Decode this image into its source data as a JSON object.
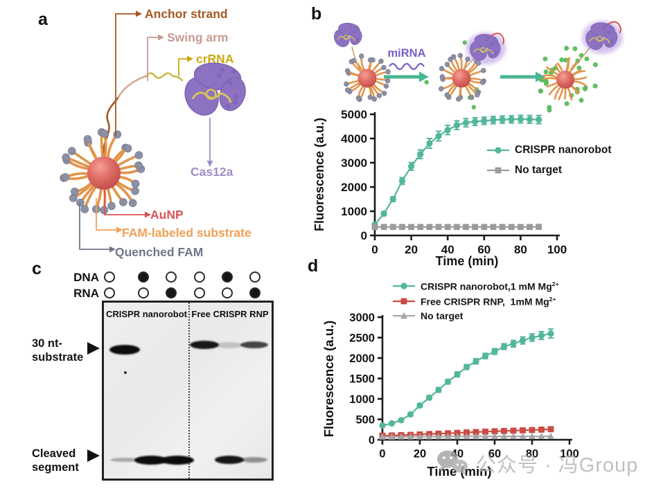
{
  "panel_labels": {
    "a": "a",
    "b": "b",
    "c": "c",
    "d": "d"
  },
  "panel_a": {
    "anchor_strand": {
      "label": "Anchor strand",
      "color": "#a4571f"
    },
    "swing_arm": {
      "label": "Swing arm",
      "color": "#c79a92"
    },
    "crrna": {
      "label": "crRNA",
      "color": "#c9a90e"
    },
    "cas12a": {
      "label": "Cas12a",
      "color": "#a08cc8"
    },
    "aunp": {
      "label": "AuNP",
      "color": "#dd5257"
    },
    "fam_substrate": {
      "label": "FAM-labeled substrate",
      "color": "#f0a055"
    },
    "quenched_fam": {
      "label": "Quenched FAM",
      "color": "#717589"
    }
  },
  "panel_b_schematic": {
    "mirna_label": "miRNA",
    "mirna_color": "#7b5ec9",
    "arrow_color": "#4bb696",
    "green_dot_color": "#5abb58"
  },
  "chart_data": [
    {
      "id": "b",
      "type": "line",
      "xlabel": "Time (min)",
      "ylabel": "Fluorescence (a.u.)",
      "xlim": [
        0,
        100
      ],
      "ylim": [
        0,
        5000
      ],
      "xticks": [
        0,
        20,
        40,
        60,
        80,
        100
      ],
      "yticks": [
        0,
        1000,
        2000,
        3000,
        4000,
        5000
      ],
      "x": [
        0,
        5,
        10,
        15,
        20,
        25,
        30,
        35,
        40,
        45,
        50,
        55,
        60,
        65,
        70,
        75,
        80,
        85,
        90
      ],
      "series": [
        {
          "name": "CRISPR nanorobot",
          "color": "#52b69b",
          "marker": "circle",
          "values": [
            450,
            900,
            1500,
            2250,
            2850,
            3350,
            3800,
            4100,
            4350,
            4550,
            4650,
            4700,
            4730,
            4760,
            4780,
            4790,
            4800,
            4790,
            4780
          ],
          "errors": [
            60,
            80,
            100,
            140,
            160,
            180,
            200,
            200,
            190,
            180,
            170,
            160,
            150,
            150,
            150,
            150,
            160,
            160,
            170
          ]
        },
        {
          "name": "No target",
          "color": "#9b9b9b",
          "marker": "square",
          "values": [
            350,
            350,
            350,
            350,
            350,
            350,
            350,
            350,
            350,
            350,
            350,
            350,
            350,
            350,
            350,
            350,
            350,
            350,
            355
          ],
          "errors": [
            0,
            0,
            0,
            0,
            0,
            0,
            0,
            0,
            0,
            0,
            0,
            0,
            0,
            0,
            0,
            0,
            0,
            0,
            0
          ]
        }
      ],
      "legend_position": "inside-right"
    },
    {
      "id": "d",
      "type": "line",
      "xlabel": "Time  (min)",
      "ylabel": "Fluorescence (a.u.)",
      "xlim": [
        0,
        100
      ],
      "ylim": [
        0,
        3000
      ],
      "xticks": [
        0,
        20,
        40,
        60,
        80,
        100
      ],
      "yticks": [
        0,
        500,
        1000,
        1500,
        2000,
        2500,
        3000
      ],
      "x": [
        0,
        5,
        10,
        15,
        20,
        25,
        30,
        35,
        40,
        45,
        50,
        55,
        60,
        65,
        70,
        75,
        80,
        85,
        90
      ],
      "series": [
        {
          "name": "CRISPR nanorobot,1 mM Mg2+",
          "color": "#52b69b",
          "marker": "circle",
          "values": [
            350,
            400,
            480,
            620,
            840,
            1030,
            1220,
            1420,
            1600,
            1780,
            1920,
            2050,
            2160,
            2280,
            2350,
            2430,
            2500,
            2550,
            2600
          ],
          "errors": [
            30,
            30,
            35,
            40,
            45,
            50,
            55,
            55,
            60,
            60,
            65,
            65,
            70,
            70,
            80,
            85,
            90,
            95,
            110
          ]
        },
        {
          "name": "Free CRISPR RNP,  1mM Mg2+",
          "color": "#cb4a42",
          "marker": "square",
          "values": [
            100,
            105,
            112,
            120,
            130,
            140,
            150,
            158,
            168,
            178,
            188,
            198,
            208,
            215,
            222,
            230,
            238,
            248,
            258
          ],
          "errors": [
            15,
            15,
            15,
            15,
            15,
            15,
            15,
            15,
            15,
            15,
            15,
            15,
            15,
            15,
            15,
            15,
            15,
            15,
            18
          ]
        },
        {
          "name": "No target",
          "color": "#a6a6a6",
          "marker": "triangle",
          "values": [
            72,
            73,
            74,
            75,
            76,
            77,
            78,
            79,
            80,
            80,
            81,
            81,
            82,
            82,
            83,
            83,
            84,
            84,
            85
          ],
          "errors": [
            8,
            8,
            8,
            8,
            8,
            8,
            8,
            8,
            8,
            8,
            8,
            8,
            8,
            8,
            8,
            8,
            8,
            8,
            8
          ]
        }
      ],
      "legend_position": "above"
    }
  ],
  "gel": {
    "dna_label": "DNA",
    "rna_label": "RNA",
    "dna_dots": [
      false,
      true,
      false,
      false,
      true,
      false
    ],
    "rna_dots": [
      false,
      false,
      true,
      false,
      false,
      true
    ],
    "left_header": "CRISPR nanorobot",
    "right_header": "Free CRISPR RNP",
    "top_label_line1": "30 nt-",
    "top_label_line2": "substrate",
    "bottom_label_line1": "Cleaved",
    "bottom_label_line2": "segment",
    "bands": [
      {
        "lane": 1,
        "row": "top",
        "intensity": 1.0,
        "w": 44,
        "h": 14
      },
      {
        "lane": 4,
        "row": "top",
        "intensity": 0.95,
        "w": 42,
        "h": 12
      },
      {
        "lane": 5,
        "row": "top",
        "intensity": 0.18,
        "w": 40,
        "h": 9
      },
      {
        "lane": 6,
        "row": "top",
        "intensity": 0.75,
        "w": 40,
        "h": 10
      },
      {
        "lane": 1,
        "row": "bottom",
        "intensity": 0.3,
        "w": 42,
        "h": 6
      },
      {
        "lane": 2,
        "row": "bottom",
        "intensity": 1.0,
        "w": 48,
        "h": 13
      },
      {
        "lane": 3,
        "row": "bottom",
        "intensity": 1.0,
        "w": 48,
        "h": 13
      },
      {
        "lane": 5,
        "row": "bottom",
        "intensity": 0.95,
        "w": 42,
        "h": 12
      },
      {
        "lane": 6,
        "row": "bottom",
        "intensity": 0.4,
        "w": 38,
        "h": 8
      }
    ]
  },
  "watermark": {
    "text": "公众号 · 冯Group",
    "icon": "wechat-icon"
  }
}
